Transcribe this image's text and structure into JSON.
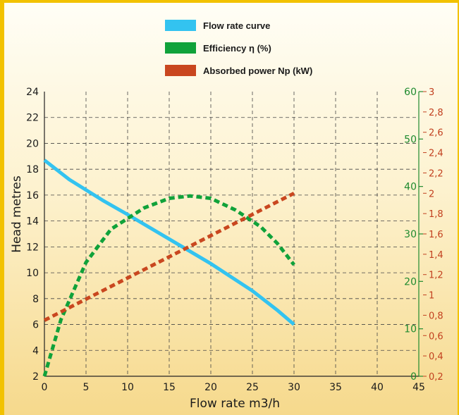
{
  "chart_data": {
    "type": "line",
    "legend": [
      {
        "label": "Flow rate curve",
        "color": "#33c3f0"
      },
      {
        "label": "Efficiency η (%)",
        "color": "#10a23a"
      },
      {
        "label": "Absorbed power Np (kW)",
        "color": "#c9471f"
      }
    ],
    "xlabel": "Flow rate m3/h",
    "ylabel": "Head metres",
    "xlim": [
      0,
      45
    ],
    "ylim": [
      2,
      24
    ],
    "x_ticks": [
      "0",
      "5",
      "10",
      "15",
      "20",
      "25",
      "30",
      "35",
      "40",
      "45"
    ],
    "y_ticks_left": [
      "2",
      "4",
      "6",
      "8",
      "10",
      "12",
      "14",
      "16",
      "18",
      "20",
      "22",
      "24"
    ],
    "y_ticks_efficiency": [
      "0",
      "10",
      "20",
      "30",
      "40",
      "50",
      "60"
    ],
    "y_ticks_power": [
      "0,2",
      "0,4",
      "0,6",
      "0,8",
      "1",
      "1,2",
      "1,4",
      "1,6",
      "1,8",
      "2",
      "2,2",
      "2,4",
      "2,6",
      "2,8",
      "3"
    ],
    "efficiency_lim": [
      0,
      60
    ],
    "power_lim": [
      0.2,
      3
    ],
    "grid": true,
    "series": [
      {
        "name": "Flow rate curve",
        "axis": "head",
        "style": "solid",
        "color": "#33c3f0",
        "x": [
          0,
          3,
          7,
          10,
          15,
          20,
          25,
          28,
          30
        ],
        "y": [
          18.7,
          17.2,
          15.6,
          14.5,
          12.6,
          10.7,
          8.6,
          7.1,
          6.0
        ]
      },
      {
        "name": "Efficiency η (%)",
        "axis": "efficiency",
        "style": "dashed",
        "color": "#10a23a",
        "x": [
          0,
          2,
          5,
          8,
          12,
          15,
          17.5,
          20,
          23,
          26,
          28,
          30
        ],
        "y": [
          0,
          12,
          24,
          31,
          35.5,
          37.5,
          38,
          37.5,
          35,
          31.5,
          28,
          23.5
        ]
      },
      {
        "name": "Absorbed power Np (kW)",
        "axis": "power",
        "style": "dashed",
        "color": "#c9471f",
        "x": [
          0,
          30
        ],
        "y": [
          0.75,
          2.0
        ]
      }
    ]
  }
}
